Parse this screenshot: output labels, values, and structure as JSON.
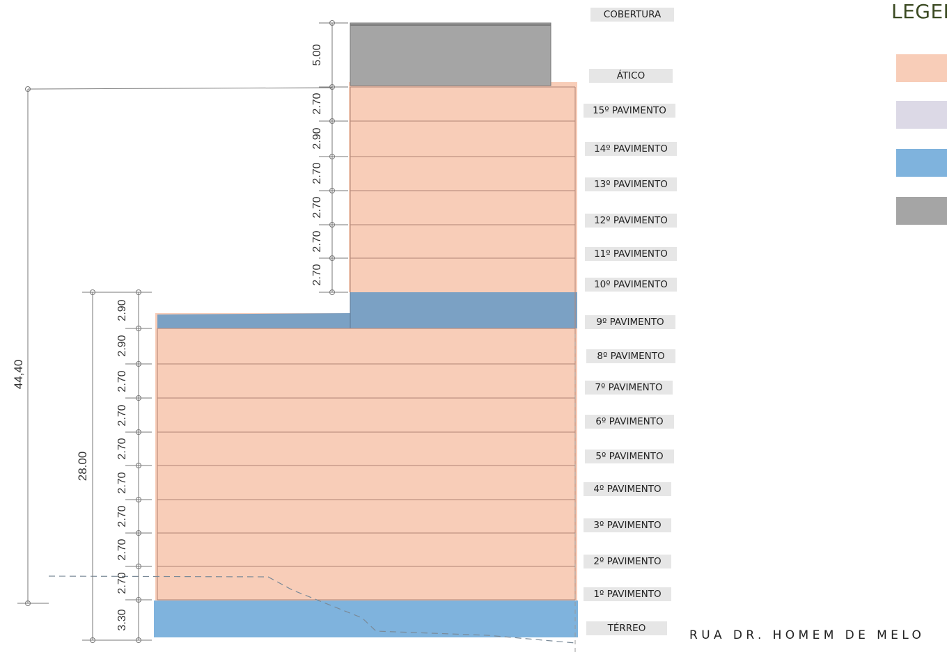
{
  "legend": {
    "title": "LEGENDA",
    "swatches": [
      {
        "color": "#f8cdb8"
      },
      {
        "color": "#dcd9e6"
      },
      {
        "color": "#7fb3dd"
      },
      {
        "color": "#a5a5a5"
      }
    ]
  },
  "street_label": "RUA DR. HOMEM DE MELO",
  "floors": [
    {
      "label": "COBERTURA",
      "height": ""
    },
    {
      "label": "ÁTICO",
      "height": "5.00"
    },
    {
      "label": "15º PAVIMENTO",
      "height": "2.70"
    },
    {
      "label": "14º PAVIMENTO",
      "height": "2.90"
    },
    {
      "label": "13º PAVIMENTO",
      "height": "2.70"
    },
    {
      "label": "12º PAVIMENTO",
      "height": "2.70"
    },
    {
      "label": "11º PAVIMENTO",
      "height": "2.70"
    },
    {
      "label": "10º PAVIMENTO",
      "height": "2.70"
    },
    {
      "label": "9º PAVIMENTO",
      "height": "2.90"
    },
    {
      "label": "8º PAVIMENTO",
      "height": "2.90"
    },
    {
      "label": "7º PAVIMENTO",
      "height": "2.70"
    },
    {
      "label": "6º PAVIMENTO",
      "height": "2.70"
    },
    {
      "label": "5º PAVIMENTO",
      "height": "2.70"
    },
    {
      "label": "4º PAVIMENTO",
      "height": "2.70"
    },
    {
      "label": "3º PAVIMENTO",
      "height": "2.70"
    },
    {
      "label": "2º PAVIMENTO",
      "height": "2.70"
    },
    {
      "label": "1º PAVIMENTO",
      "height": "2.70"
    },
    {
      "label": "TÉRREO",
      "height": "3.30"
    }
  ],
  "dimensions": {
    "total_height": "44,40",
    "lower_block_height": "28.00"
  },
  "colors": {
    "floor_fill": "#f8cdb8",
    "blue_fill": "#7fb3dd",
    "dark_blue_fill": "#7ba1c4",
    "grey_fill": "#a5a5a5"
  }
}
